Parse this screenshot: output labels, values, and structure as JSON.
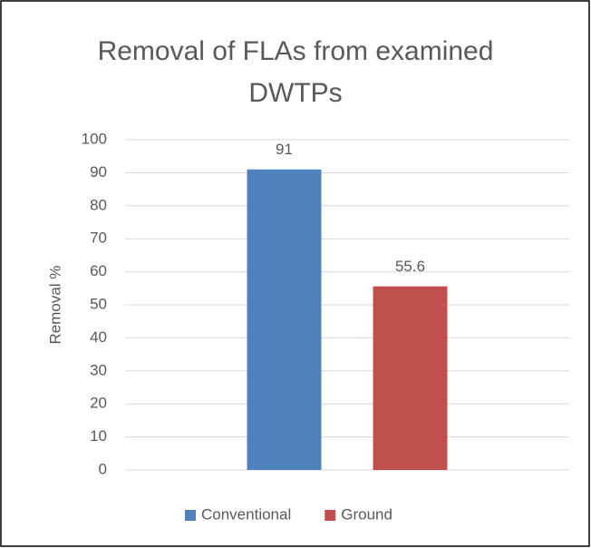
{
  "chart_data": {
    "type": "bar",
    "title": "Removal of FLAs from examined DWTPs",
    "y_label": "Removal %",
    "categories": [
      null
    ],
    "series": [
      {
        "name": "Conventional",
        "color": "#4f81bd",
        "values": [
          91
        ]
      },
      {
        "name": "Ground",
        "color": "#c0504d",
        "values": [
          55.6
        ]
      }
    ],
    "ylim": [
      0,
      100
    ],
    "yticks": [
      0,
      10,
      20,
      30,
      40,
      50,
      60,
      70,
      80,
      90,
      100
    ],
    "grid": true,
    "legend": "bottom"
  }
}
